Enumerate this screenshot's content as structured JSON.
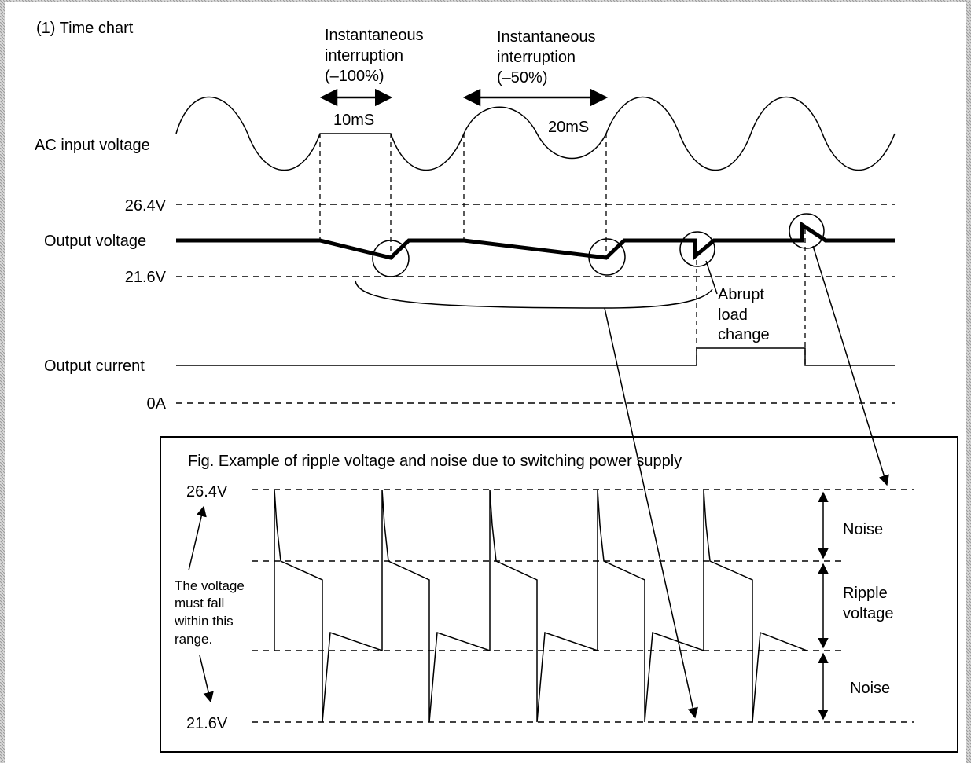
{
  "title": "(1) Time chart",
  "interruption_1": {
    "line1": "Instantaneous",
    "line2": "interruption",
    "line3": "(–100%)",
    "duration": "10mS"
  },
  "interruption_2": {
    "line1": "Instantaneous",
    "line2": "interruption",
    "line3": "(–50%)",
    "duration": "20mS"
  },
  "signals": {
    "ac_input": "AC input voltage",
    "upper_limit": "26.4V",
    "output_voltage": "Output voltage",
    "lower_limit": "21.6V",
    "output_current": "Output current",
    "zero": "0A"
  },
  "abrupt": {
    "line1": "Abrupt",
    "line2": "load",
    "line3": "change"
  },
  "figure": {
    "caption": "Fig.  Example of ripple voltage and noise due to switching power supply",
    "upper": "26.4V",
    "lower": "21.6V",
    "note": [
      "The voltage",
      "must fall",
      "within this",
      "range."
    ],
    "noise_top": "Noise",
    "ripple_line1": "Ripple",
    "ripple_line2": "voltage",
    "noise_bottom": "Noise"
  }
}
